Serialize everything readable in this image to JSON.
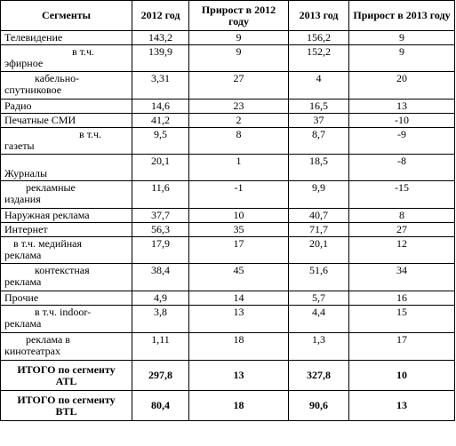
{
  "table": {
    "headers": [
      "Сегменты",
      "2012 год",
      "Прирост в 2012 году",
      "2013 год",
      "Прирост в 2013 году"
    ],
    "rows": [
      {
        "segment": [
          "Телевидение"
        ],
        "y2012": "143,2",
        "g2012": "9",
        "y2013": "156,2",
        "g2013": "9"
      },
      {
        "segment": [
          "в т.ч.",
          "эфирное"
        ],
        "y2012": "139,9",
        "g2012": "9",
        "y2013": "152,2",
        "g2013": "9"
      },
      {
        "segment": [
          "кабельно-",
          "спутниковое"
        ],
        "y2012": "3,31",
        "g2012": "27",
        "y2013": "4",
        "g2013": "20"
      },
      {
        "segment": [
          "Радио"
        ],
        "y2012": "14,6",
        "g2012": "23",
        "y2013": "16,5",
        "g2013": "13"
      },
      {
        "segment": [
          "Печатные СМИ"
        ],
        "y2012": "41,2",
        "g2012": "2",
        "y2013": "37",
        "g2013": "-10"
      },
      {
        "segment": [
          "в т.ч.",
          "газеты"
        ],
        "y2012": "9,5",
        "g2012": "8",
        "y2013": "8,7",
        "g2013": "-9"
      },
      {
        "segment": [
          "",
          "Журналы"
        ],
        "y2012": "20,1",
        "g2012": "1",
        "y2013": "18,5",
        "g2013": "-8"
      },
      {
        "segment": [
          "рекламные",
          "издания"
        ],
        "y2012": "11,6",
        "g2012": "-1",
        "y2013": "9,9",
        "g2013": "-15"
      },
      {
        "segment": [
          "Наружная реклама"
        ],
        "y2012": "37,7",
        "g2012": "10",
        "y2013": "40,7",
        "g2013": "8"
      },
      {
        "segment": [
          "Интернет"
        ],
        "y2012": "56,3",
        "g2012": "35",
        "y2013": "71,7",
        "g2013": "27"
      },
      {
        "segment": [
          "в т.ч. медийная",
          "реклама"
        ],
        "y2012": "17,9",
        "g2012": "17",
        "y2013": "20,1",
        "g2013": "12"
      },
      {
        "segment": [
          "контекстная",
          "реклама"
        ],
        "y2012": "38,4",
        "g2012": "45",
        "y2013": "51,6",
        "g2013": "34"
      },
      {
        "segment": [
          "Прочие"
        ],
        "y2012": "4,9",
        "g2012": "14",
        "y2013": "5,7",
        "g2013": "16"
      },
      {
        "segment": [
          "в т.ч. indoor-",
          "реклама"
        ],
        "y2012": "3,8",
        "g2012": "13",
        "y2013": "4,4",
        "g2013": "15"
      },
      {
        "segment": [
          "реклама в",
          "кинотеатрах"
        ],
        "y2012": "1,11",
        "g2012": "18",
        "y2013": "1,3",
        "g2013": "17"
      },
      {
        "segment": [
          "ИТОГО по сегменту",
          "ATL"
        ],
        "y2012": "297,8",
        "g2012": "13",
        "y2013": "327,8",
        "g2013": "10"
      },
      {
        "segment": [
          "ИТОГО по сегменту",
          "BTL"
        ],
        "y2012": "80,4",
        "g2012": "18",
        "y2013": "90,6",
        "g2013": "13"
      }
    ]
  }
}
